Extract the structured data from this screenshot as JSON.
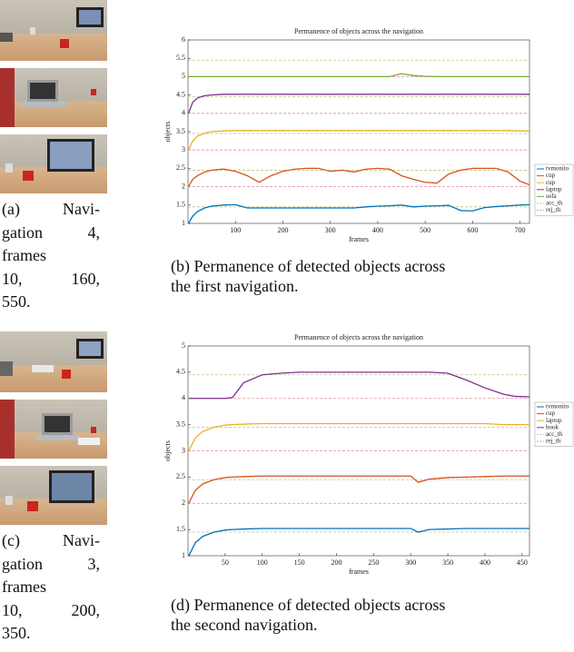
{
  "chart_data": [
    {
      "type": "line",
      "title": "Permanence of objects across the navigation",
      "xlabel": "frames",
      "ylabel": "objects",
      "x": [
        1,
        10,
        20,
        35,
        50,
        75,
        100,
        125,
        150,
        175,
        200,
        225,
        250,
        275,
        300,
        325,
        350,
        375,
        400,
        425,
        450,
        475,
        500,
        525,
        550,
        575,
        600,
        625,
        650,
        675,
        700,
        720
      ],
      "xlim": [
        0,
        720
      ],
      "xticks": [
        100,
        200,
        300,
        400,
        500,
        600,
        700
      ],
      "ylim": [
        1,
        6
      ],
      "yticks": [
        1,
        1.5,
        2,
        2.5,
        3,
        3.5,
        4,
        4.5,
        5,
        5.5,
        6
      ],
      "legend": "right",
      "series": [
        {
          "name": "tvmonito",
          "color": "#0072bd",
          "values": [
            1.0,
            1.2,
            1.32,
            1.42,
            1.47,
            1.5,
            1.51,
            1.42,
            1.42,
            1.42,
            1.42,
            1.42,
            1.42,
            1.42,
            1.42,
            1.42,
            1.42,
            1.45,
            1.47,
            1.48,
            1.5,
            1.45,
            1.47,
            1.48,
            1.49,
            1.35,
            1.34,
            1.43,
            1.46,
            1.48,
            1.5,
            1.51
          ]
        },
        {
          "name": "cup",
          "color": "#d95319",
          "values": [
            2.0,
            2.2,
            2.3,
            2.4,
            2.45,
            2.48,
            2.42,
            2.3,
            2.12,
            2.3,
            2.42,
            2.48,
            2.5,
            2.5,
            2.42,
            2.45,
            2.4,
            2.48,
            2.5,
            2.48,
            2.3,
            2.2,
            2.12,
            2.1,
            2.35,
            2.45,
            2.5,
            2.5,
            2.5,
            2.4,
            2.15,
            2.05
          ]
        },
        {
          "name": "cup",
          "color": "#edb120",
          "values": [
            3.0,
            3.25,
            3.38,
            3.46,
            3.5,
            3.52,
            3.53,
            3.53,
            3.53,
            3.53,
            3.53,
            3.53,
            3.53,
            3.53,
            3.53,
            3.53,
            3.53,
            3.53,
            3.53,
            3.53,
            3.53,
            3.53,
            3.53,
            3.53,
            3.53,
            3.53,
            3.53,
            3.53,
            3.53,
            3.53,
            3.52,
            3.52
          ]
        },
        {
          "name": "laptop",
          "color": "#7e2f8e",
          "values": [
            4.0,
            4.3,
            4.42,
            4.48,
            4.5,
            4.52,
            4.52,
            4.52,
            4.52,
            4.52,
            4.52,
            4.52,
            4.52,
            4.52,
            4.52,
            4.52,
            4.52,
            4.52,
            4.52,
            4.52,
            4.52,
            4.52,
            4.52,
            4.52,
            4.52,
            4.52,
            4.52,
            4.52,
            4.52,
            4.52,
            4.52,
            4.52
          ]
        },
        {
          "name": "sofa",
          "color": "#77ac30",
          "values": [
            5.0,
            5.0,
            5.0,
            5.0,
            5.0,
            5.0,
            5.0,
            5.0,
            5.0,
            5.0,
            5.0,
            5.0,
            5.0,
            5.0,
            5.0,
            5.0,
            5.0,
            5.0,
            5.0,
            5.0,
            5.08,
            5.03,
            5.01,
            5.0,
            5.0,
            5.0,
            5.0,
            5.0,
            5.0,
            5.0,
            5.0,
            5.0
          ]
        }
      ],
      "thresholds": [
        {
          "name": "acc_th",
          "color": "#b7c98a",
          "levels": [
            1.45,
            2.45,
            3.45,
            4.45,
            5.45
          ]
        },
        {
          "name": "rej_th",
          "color": "#e08ca0",
          "levels": [
            2,
            3,
            4,
            5
          ]
        }
      ]
    },
    {
      "type": "line",
      "title": "Permanence of objects across the navigation",
      "xlabel": "frames",
      "ylabel": "objects",
      "x": [
        1,
        10,
        20,
        35,
        50,
        60,
        75,
        100,
        125,
        150,
        200,
        250,
        300,
        310,
        325,
        350,
        375,
        400,
        425,
        440,
        460
      ],
      "xlim": [
        0,
        460
      ],
      "xticks": [
        50,
        100,
        150,
        200,
        250,
        300,
        350,
        400,
        450
      ],
      "ylim": [
        1,
        5
      ],
      "yticks": [
        1,
        1.5,
        2,
        2.5,
        3,
        3.5,
        4,
        4.5,
        5
      ],
      "legend": "right",
      "series": [
        {
          "name": "tvmonito",
          "color": "#0072bd",
          "values": [
            1.0,
            1.25,
            1.37,
            1.45,
            1.49,
            1.5,
            1.51,
            1.52,
            1.52,
            1.52,
            1.52,
            1.52,
            1.52,
            1.45,
            1.5,
            1.51,
            1.52,
            1.52,
            1.52,
            1.52,
            1.52
          ]
        },
        {
          "name": "cup",
          "color": "#d95319",
          "values": [
            2.0,
            2.25,
            2.37,
            2.45,
            2.49,
            2.5,
            2.51,
            2.52,
            2.52,
            2.52,
            2.52,
            2.52,
            2.52,
            2.4,
            2.46,
            2.49,
            2.5,
            2.51,
            2.52,
            2.52,
            2.52
          ]
        },
        {
          "name": "laptop",
          "color": "#edb120",
          "values": [
            3.0,
            3.25,
            3.37,
            3.45,
            3.49,
            3.5,
            3.51,
            3.52,
            3.52,
            3.52,
            3.52,
            3.52,
            3.52,
            3.52,
            3.52,
            3.52,
            3.52,
            3.52,
            3.5,
            3.5,
            3.5
          ]
        },
        {
          "name": "book",
          "color": "#7e2f8e",
          "values": [
            4.0,
            4.0,
            4.0,
            4.0,
            4.0,
            4.02,
            4.3,
            4.45,
            4.48,
            4.5,
            4.5,
            4.5,
            4.5,
            4.5,
            4.5,
            4.48,
            4.35,
            4.2,
            4.08,
            4.04,
            4.03
          ]
        }
      ],
      "thresholds": [
        {
          "name": "acc_th",
          "color": "#b7c98a",
          "levels": [
            1.45,
            2.45,
            3.45,
            4.45
          ]
        },
        {
          "name": "rej_th",
          "color": "#e08ca0",
          "levels": [
            2,
            3,
            4
          ]
        }
      ]
    }
  ],
  "captions": {
    "a": [
      "(a) Navi-",
      "gation 4,",
      "frames",
      "10, 160,",
      "550."
    ],
    "b": [
      "(b) Permanence of detected objects across",
      "the first navigation."
    ],
    "c": [
      "(c) Navi-",
      "gation 3,",
      "frames",
      "10, 200,",
      "350."
    ],
    "d": [
      "(d) Permanence of detected objects across",
      "the second navigation."
    ]
  }
}
